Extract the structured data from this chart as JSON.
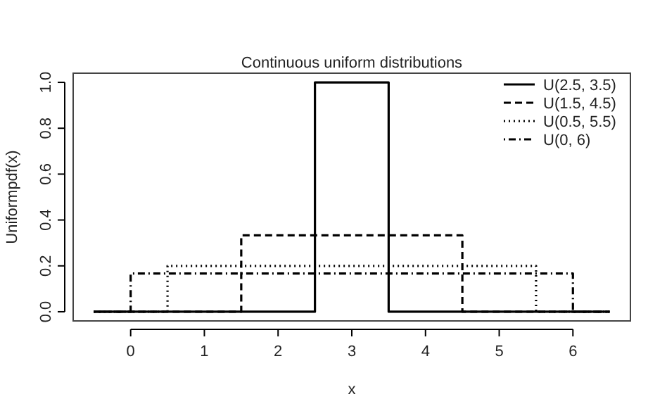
{
  "chart_data": {
    "type": "step",
    "title": "Continuous uniform distributions",
    "xlabel": "x",
    "ylabel": "Uniformpdf(x)",
    "xlim": [
      -0.78,
      6.78
    ],
    "ylim": [
      -0.04,
      1.04
    ],
    "xticks": [
      0,
      1,
      2,
      3,
      4,
      5,
      6
    ],
    "yticks": [
      {
        "value": 0,
        "label": "0.0"
      },
      {
        "value": 0.2,
        "label": "0.2"
      },
      {
        "value": 0.4,
        "label": "0.4"
      },
      {
        "value": 0.6,
        "label": "0.6"
      },
      {
        "value": 0.8,
        "label": "0.8"
      },
      {
        "value": 1,
        "label": "1.0"
      }
    ],
    "grid": false,
    "legend": "top right",
    "series": [
      {
        "name": "U(2.5, 3.5)",
        "color": "#000000",
        "line_style": "solid",
        "x": [
          -0.5,
          2.5,
          3.5,
          6.5
        ],
        "values": [
          0,
          1,
          0,
          0
        ]
      },
      {
        "name": "U(1.5, 4.5)",
        "color": "#000000",
        "line_style": "dashed",
        "x": [
          -0.5,
          1.5,
          4.5,
          6.5
        ],
        "values": [
          0,
          0.333,
          0,
          0
        ]
      },
      {
        "name": "U(0.5, 5.5)",
        "color": "#000000",
        "line_style": "dotted",
        "x": [
          -0.5,
          0.5,
          5.5,
          6.5
        ],
        "values": [
          0,
          0.2,
          0,
          0
        ]
      },
      {
        "name": "U(0, 6)",
        "color": "#000000",
        "line_style": "dashdot",
        "x": [
          -0.5,
          0,
          6,
          6.5
        ],
        "values": [
          0,
          0.167,
          0,
          0
        ]
      }
    ]
  }
}
